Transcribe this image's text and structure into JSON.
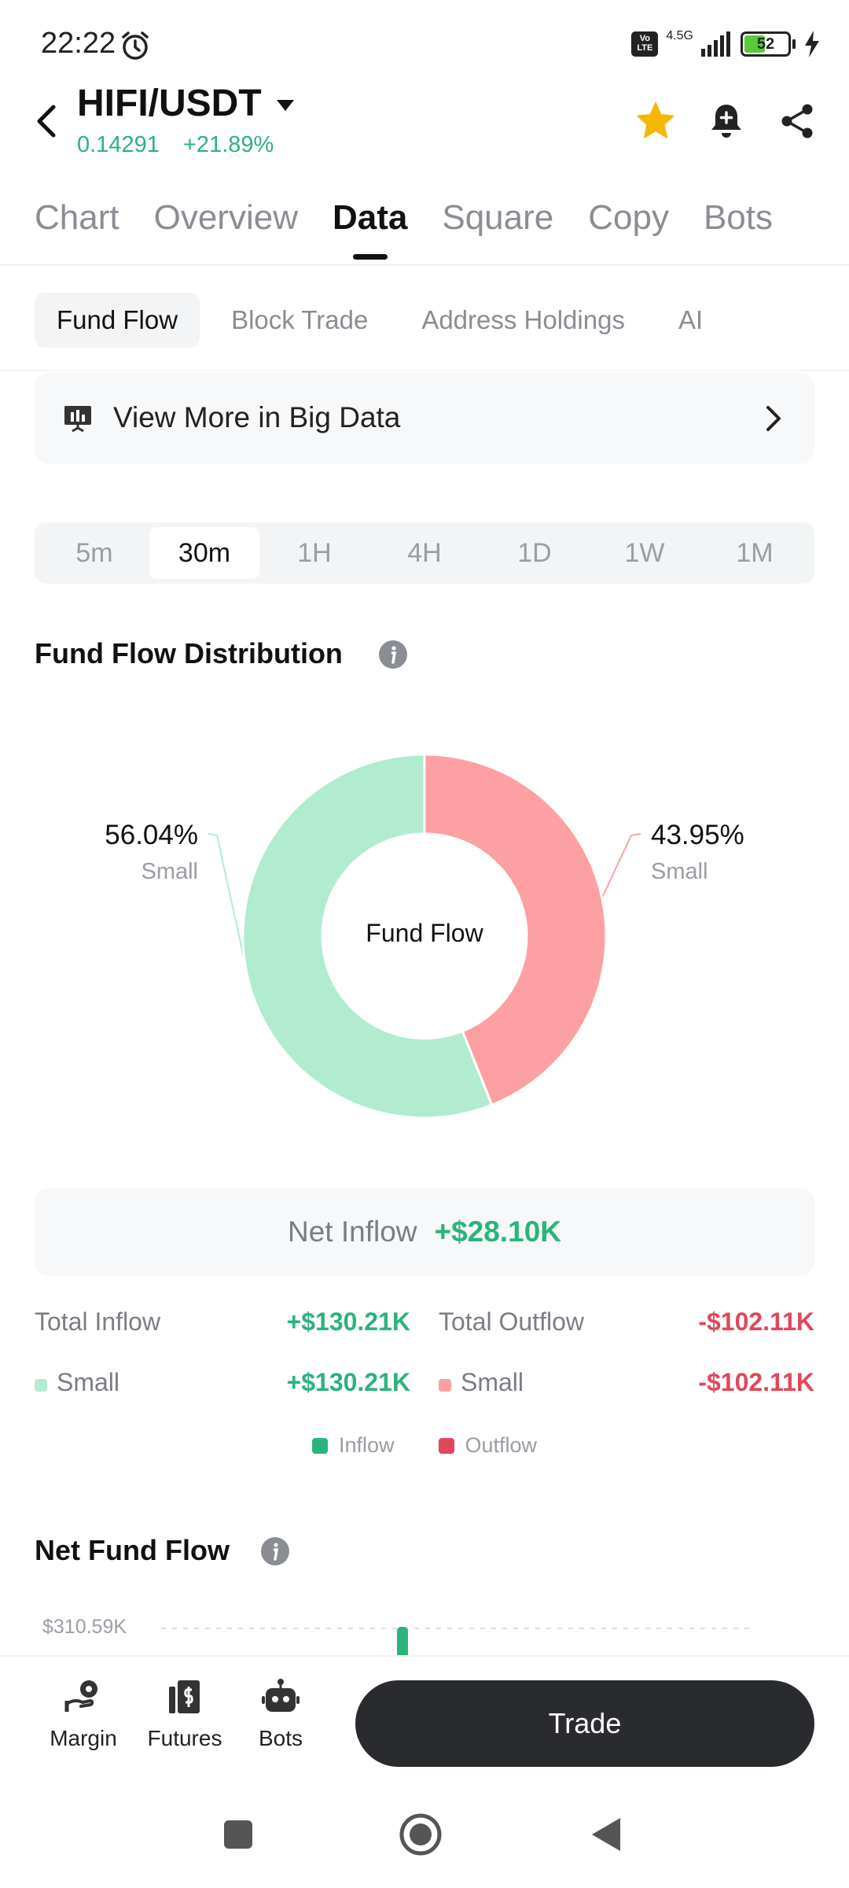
{
  "status_bar": {
    "time": "22:22",
    "network": "4.5G",
    "volte": "Vo LTE",
    "battery_percent": "52",
    "battery_level": 0.52
  },
  "header": {
    "pair": "HIFI/USDT",
    "price": "0.14291",
    "change": "+21.89%",
    "colors": {
      "positive": "#2bb37b",
      "negative": "#e0485a",
      "star": "#f5b800"
    }
  },
  "main_tabs": [
    {
      "label": "Chart"
    },
    {
      "label": "Overview"
    },
    {
      "label": "Data",
      "active": true
    },
    {
      "label": "Square"
    },
    {
      "label": "Copy"
    },
    {
      "label": "Bots"
    }
  ],
  "sub_tabs": [
    {
      "label": "Fund Flow",
      "active": true
    },
    {
      "label": "Block Trade"
    },
    {
      "label": "Address Holdings"
    },
    {
      "label": "AI"
    }
  ],
  "big_data": {
    "label": "View More in Big Data"
  },
  "intervals": [
    {
      "label": "5m"
    },
    {
      "label": "30m",
      "active": true
    },
    {
      "label": "1H"
    },
    {
      "label": "4H"
    },
    {
      "label": "1D"
    },
    {
      "label": "1W"
    },
    {
      "label": "1M"
    }
  ],
  "distribution": {
    "title": "Fund Flow Distribution",
    "center_label": "Fund Flow"
  },
  "chart_data": {
    "type": "pie",
    "title": "Fund Flow Distribution",
    "slices": [
      {
        "label": "Small",
        "group": "Outflow",
        "percent": 43.95,
        "color": "#fca0a4"
      },
      {
        "label": "Small",
        "group": "Inflow",
        "percent": 56.04,
        "color": "#b1ebd0"
      }
    ],
    "labels": [
      {
        "percent_text": "56.04%",
        "category": "Small",
        "side": "left"
      },
      {
        "percent_text": "43.95%",
        "category": "Small",
        "side": "right"
      }
    ]
  },
  "net_inflow": {
    "label": "Net Inflow",
    "value": "+$28.10K"
  },
  "totals": {
    "total_inflow_label": "Total Inflow",
    "total_inflow_value": "+$130.21K",
    "total_outflow_label": "Total Outflow",
    "total_outflow_value": "-$102.11K",
    "small_inflow_label": "Small",
    "small_inflow_value": "+$130.21K",
    "small_outflow_label": "Small",
    "small_outflow_value": "-$102.11K"
  },
  "legend": {
    "inflow": "Inflow",
    "outflow": "Outflow",
    "inflow_color": "#2bb37b",
    "outflow_color": "#e0485a"
  },
  "net_fund_flow": {
    "title": "Net Fund Flow",
    "axis_top_label": "$310.59K"
  },
  "bottom_bar": {
    "margin": "Margin",
    "futures": "Futures",
    "bots": "Bots",
    "trade": "Trade"
  }
}
